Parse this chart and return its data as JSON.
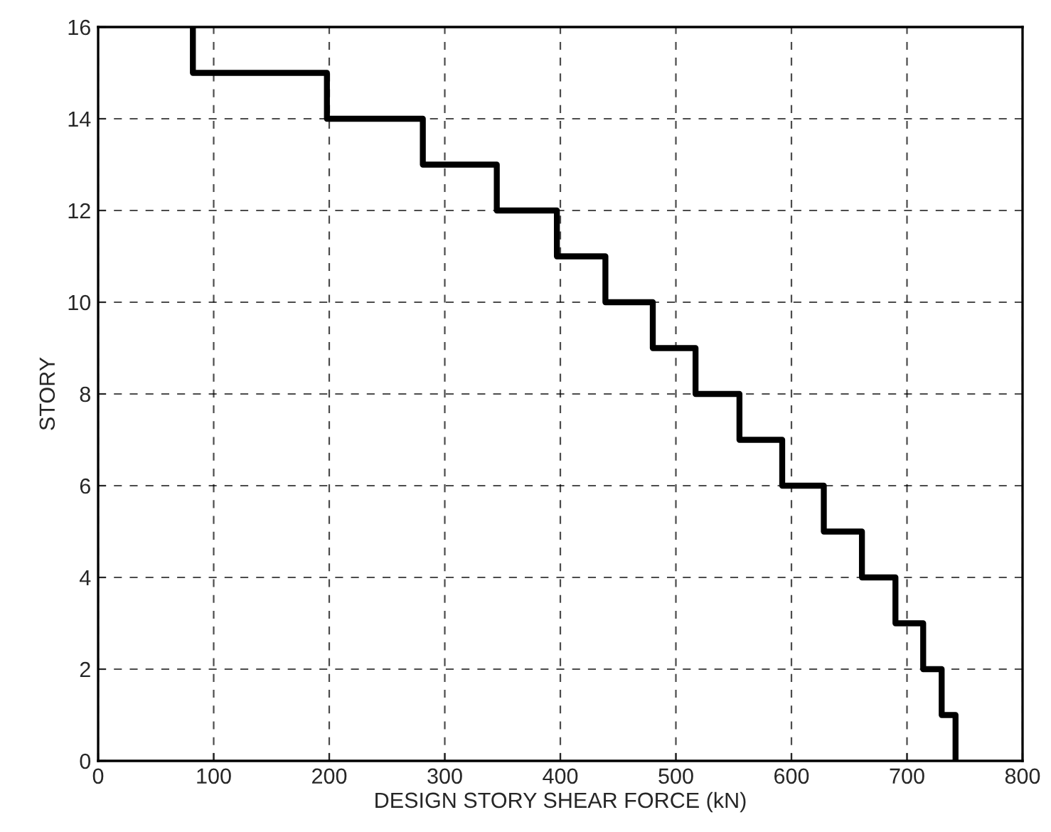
{
  "chart_data": {
    "type": "step",
    "xlabel": "DESIGN STORY SHEAR FORCE (kN)",
    "ylabel": "STORY",
    "series": [
      {
        "color": "#000000",
        "x": [
          742,
          730,
          714,
          690,
          661,
          628,
          592,
          555,
          517,
          480,
          439,
          397,
          345,
          281,
          198,
          82,
          82
        ],
        "values": [
          0,
          1,
          2,
          3,
          4,
          5,
          6,
          7,
          8,
          9,
          10,
          11,
          12,
          13,
          14,
          15,
          16
        ]
      }
    ],
    "xlim": [
      0,
      800
    ],
    "xticks": [
      0,
      100,
      200,
      300,
      400,
      500,
      600,
      700,
      800
    ],
    "ylim": [
      0,
      16
    ],
    "yticks": [
      0,
      2,
      4,
      6,
      8,
      10,
      12,
      14,
      16
    ],
    "grid": true,
    "line_style": "solid",
    "legend": false
  }
}
